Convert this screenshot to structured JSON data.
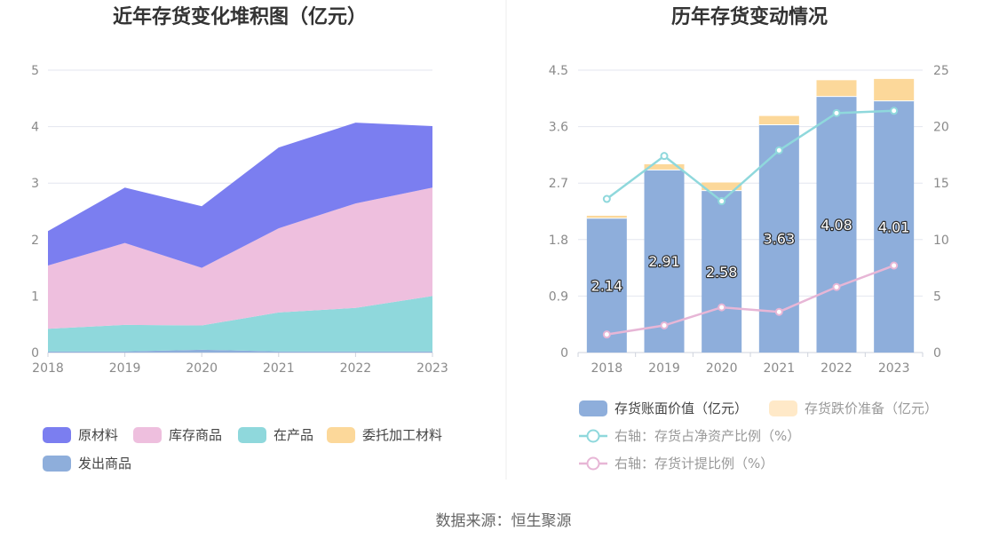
{
  "chart_data": [
    {
      "type": "area",
      "stacked": true,
      "title": "近年存货变化堆积图（亿元）",
      "x": [
        "2018",
        "2019",
        "2020",
        "2021",
        "2022",
        "2023"
      ],
      "ylim": [
        0,
        5
      ],
      "yticks": [
        "0",
        "1",
        "2",
        "3",
        "4",
        "5"
      ],
      "grid": true,
      "legend_position": "bottom",
      "series": [
        {
          "name": "发出商品",
          "color": "#8eaedb",
          "values": [
            0.02,
            0.02,
            0.05,
            0.02,
            0.02,
            0.02
          ]
        },
        {
          "name": "在产品",
          "color": "#8fd8dc",
          "values": [
            0.4,
            0.47,
            0.43,
            0.69,
            0.77,
            0.98
          ]
        },
        {
          "name": "委托加工材料",
          "color": "#fcd89a",
          "values": [
            0,
            0,
            0,
            0,
            0,
            0
          ]
        },
        {
          "name": "库存商品",
          "color": "#eebfde",
          "values": [
            1.12,
            1.45,
            1.02,
            1.49,
            1.85,
            1.92
          ]
        },
        {
          "name": "原材料",
          "color": "#7b7ef0",
          "values": [
            0.61,
            0.98,
            1.09,
            1.43,
            1.43,
            1.09
          ]
        }
      ],
      "legend_order": [
        "原材料",
        "库存商品",
        "在产品",
        "委托加工材料",
        "发出商品"
      ]
    },
    {
      "type": "bar",
      "stacked": true,
      "title": "历年存货变动情况",
      "categories": [
        "2018",
        "2019",
        "2020",
        "2021",
        "2022",
        "2023"
      ],
      "ylim": [
        0,
        4.5
      ],
      "yticks": [
        "0",
        "0.9",
        "1.8",
        "2.7",
        "3.6",
        "4.5"
      ],
      "y2lim": [
        0,
        25
      ],
      "y2ticks": [
        "0",
        "5",
        "10",
        "15",
        "20",
        "25"
      ],
      "grid": true,
      "legend_position": "bottom",
      "series": [
        {
          "name": "存货账面价值（亿元）",
          "kind": "bar",
          "axis": "left",
          "color": "#8eaedb",
          "values": [
            2.14,
            2.91,
            2.58,
            3.63,
            4.08,
            4.01
          ],
          "labels": [
            "2.14",
            "2.91",
            "2.58",
            "3.63",
            "4.08",
            "4.01"
          ]
        },
        {
          "name": "存货跌价准备（亿元）",
          "kind": "bar",
          "axis": "left",
          "color": "#fcd89a",
          "values": [
            0.04,
            0.09,
            0.13,
            0.14,
            0.26,
            0.35
          ]
        },
        {
          "name": "右轴：存货占净资产比例（%）",
          "kind": "line",
          "axis": "right",
          "color": "#8fd8dc",
          "values": [
            13.6,
            17.4,
            13.4,
            17.9,
            21.2,
            21.4
          ]
        },
        {
          "name": "右轴：存货计提比例（%）",
          "kind": "line",
          "axis": "right",
          "color": "#e7b6d6",
          "values": [
            1.6,
            2.4,
            4.0,
            3.6,
            5.8,
            7.7
          ]
        }
      ]
    }
  ],
  "source_text": "数据来源：恒生聚源"
}
